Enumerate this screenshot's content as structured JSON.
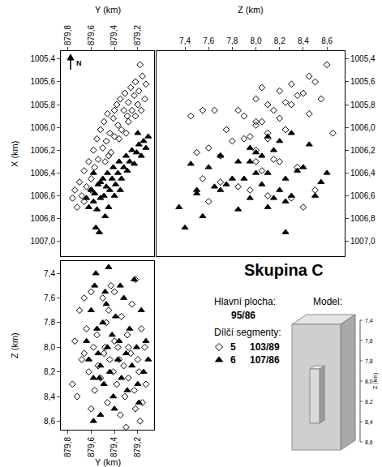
{
  "chart_data": [
    {
      "type": "scatter",
      "x_label": "Y (km)",
      "y_label": "X (km)",
      "xlim": [
        879.86,
        879.06
      ],
      "ylim": [
        1007.13,
        1005.33
      ],
      "xticks": [
        {
          "value": 879.8,
          "label": "879,8"
        },
        {
          "value": 879.6,
          "label": "879,6"
        },
        {
          "value": 879.4,
          "label": "879,4"
        },
        {
          "value": 879.2,
          "label": "879,2"
        }
      ],
      "yticks": [
        {
          "value": 1005.4,
          "label": "1005,4"
        },
        {
          "value": 1005.6,
          "label": "1005,6"
        },
        {
          "value": 1005.8,
          "label": "1005,8"
        },
        {
          "value": 1006.0,
          "label": "1006,0"
        },
        {
          "value": 1006.2,
          "label": "1006,2"
        },
        {
          "value": 1006.4,
          "label": "1006,4"
        },
        {
          "value": 1006.6,
          "label": "1006,6"
        },
        {
          "value": 1006.8,
          "label": "1006,8"
        },
        {
          "value": 1007.0,
          "label": "1007,0"
        }
      ],
      "grid": false,
      "series": [
        {
          "name": "5",
          "marker": "diamond-open",
          "color": "#000000",
          "x": [
            879.76,
            879.74,
            879.72,
            879.7,
            879.68,
            879.66,
            879.64,
            879.62,
            879.6,
            879.58,
            879.57,
            879.55,
            879.54,
            879.52,
            879.5,
            879.49,
            879.47,
            879.46,
            879.44,
            879.43,
            879.41,
            879.4,
            879.38,
            879.37,
            879.35,
            879.34,
            879.32,
            879.31,
            879.29,
            879.28,
            879.26,
            879.25,
            879.23,
            879.22,
            879.2,
            879.19,
            879.17,
            879.16,
            879.14,
            879.18,
            879.22,
            879.3,
            879.45,
            879.6,
            879.66,
            879.28,
            879.36,
            879.48,
            879.13,
            879.4
          ],
          "y": [
            1006.62,
            1006.55,
            1006.7,
            1006.48,
            1006.6,
            1006.38,
            1006.52,
            1006.3,
            1006.45,
            1006.2,
            1006.35,
            1006.1,
            1006.28,
            1006.02,
            1006.18,
            1005.95,
            1006.12,
            1005.88,
            1006.05,
            1006.22,
            1005.92,
            1006.08,
            1005.8,
            1005.98,
            1005.75,
            1006.02,
            1005.85,
            1005.7,
            1005.9,
            1005.78,
            1005.65,
            1005.85,
            1005.72,
            1005.6,
            1005.8,
            1005.68,
            1005.85,
            1005.55,
            1005.75,
            1005.45,
            1005.9,
            1006.05,
            1006.25,
            1006.55,
            1006.65,
            1005.95,
            1006.1,
            1006.3,
            1005.62,
            1005.85
          ]
        },
        {
          "name": "6",
          "marker": "triangle-up",
          "color": "#000000",
          "x": [
            879.64,
            879.62,
            879.6,
            879.58,
            879.57,
            879.55,
            879.54,
            879.52,
            879.5,
            879.49,
            879.47,
            879.46,
            879.44,
            879.42,
            879.41,
            879.39,
            879.37,
            879.36,
            879.34,
            879.32,
            879.3,
            879.29,
            879.27,
            879.25,
            879.23,
            879.21,
            879.19,
            879.17,
            879.15,
            879.13,
            879.11,
            879.56,
            879.53,
            879.48,
            879.58,
            879.4,
            879.45,
            879.2,
            879.52,
            879.35
          ],
          "y": [
            1006.62,
            1006.7,
            1006.55,
            1006.65,
            1006.58,
            1006.72,
            1006.5,
            1006.62,
            1006.45,
            1006.6,
            1006.52,
            1006.4,
            1006.55,
            1006.45,
            1006.35,
            1006.5,
            1006.4,
            1006.3,
            1006.45,
            1006.35,
            1006.25,
            1006.38,
            1006.3,
            1006.2,
            1006.32,
            1006.22,
            1006.15,
            1006.25,
            1006.12,
            1006.18,
            1006.08,
            1006.88,
            1006.92,
            1006.78,
            1006.4,
            1006.6,
            1006.7,
            1006.05,
            1006.48,
            1006.55
          ]
        }
      ]
    },
    {
      "type": "scatter",
      "x_label": "Z (km)",
      "xlim": [
        7.16,
        8.75
      ],
      "ylim": [
        1007.13,
        1005.33
      ],
      "xticks": [
        {
          "value": 7.4,
          "label": "7,4"
        },
        {
          "value": 7.6,
          "label": "7,6"
        },
        {
          "value": 7.8,
          "label": "7,8"
        },
        {
          "value": 8.0,
          "label": "8,0"
        },
        {
          "value": 8.2,
          "label": "8,2"
        },
        {
          "value": 8.4,
          "label": "8,4"
        },
        {
          "value": 8.6,
          "label": "8,6"
        }
      ],
      "yticks": [
        {
          "value": 1005.4,
          "label": "1005,4"
        },
        {
          "value": 1005.6,
          "label": "1005,6"
        },
        {
          "value": 1005.8,
          "label": "1005,8"
        },
        {
          "value": 1006.0,
          "label": "1006,0"
        },
        {
          "value": 1006.2,
          "label": "1006,2"
        },
        {
          "value": 1006.4,
          "label": "1006,4"
        },
        {
          "value": 1006.6,
          "label": "1006,6"
        },
        {
          "value": 1006.8,
          "label": "1006,8"
        },
        {
          "value": 1007.0,
          "label": "1007,0"
        }
      ],
      "grid": false,
      "series": [
        {
          "name": "5",
          "marker": "diamond-open",
          "color": "#000000",
          "x": [
            8.3,
            7.95,
            8.4,
            7.7,
            8.1,
            8.05,
            7.85,
            8.2,
            7.55,
            8.0,
            8.35,
            7.9,
            8.15,
            8.25,
            7.6,
            8.05,
            7.8,
            8.45,
            8.1,
            7.5,
            8.2,
            7.95,
            8.3,
            8.0,
            8.55,
            7.75,
            8.15,
            8.4,
            7.9,
            8.25,
            8.05,
            7.65,
            8.35,
            8.5,
            8.1,
            8.2,
            7.85,
            8.45,
            8.0,
            8.6,
            7.45,
            8.65,
            7.7,
            8.5,
            7.6,
            8.0,
            8.1,
            8.0,
            8.3,
            7.55
          ],
          "y": [
            1006.62,
            1006.55,
            1006.7,
            1006.48,
            1006.6,
            1006.38,
            1006.52,
            1006.3,
            1006.45,
            1006.2,
            1006.35,
            1006.1,
            1006.28,
            1006.02,
            1006.18,
            1005.95,
            1006.12,
            1005.88,
            1006.05,
            1006.22,
            1005.92,
            1006.08,
            1005.8,
            1005.98,
            1005.75,
            1006.02,
            1005.85,
            1005.7,
            1005.9,
            1005.78,
            1005.65,
            1005.85,
            1005.72,
            1005.6,
            1005.8,
            1005.68,
            1005.85,
            1005.55,
            1005.75,
            1005.45,
            1005.9,
            1006.05,
            1006.25,
            1006.55,
            1006.65,
            1005.95,
            1006.1,
            1006.3,
            1005.62,
            1005.85
          ]
        },
        {
          "name": "6",
          "marker": "triangle-up",
          "color": "#000000",
          "x": [
            7.95,
            8.1,
            7.7,
            8.25,
            7.5,
            7.85,
            8.05,
            8.15,
            7.8,
            8.3,
            7.65,
            8.0,
            8.2,
            7.9,
            8.4,
            7.75,
            8.1,
            7.95,
            8.25,
            7.6,
            8.05,
            8.35,
            7.85,
            8.15,
            7.45,
            8.0,
            8.45,
            7.7,
            8.2,
            7.95,
            8.1,
            7.4,
            8.25,
            7.55,
            8.6,
            8.5,
            7.35,
            8.3,
            8.55,
            7.5
          ],
          "y": [
            1006.62,
            1006.7,
            1006.55,
            1006.65,
            1006.58,
            1006.72,
            1006.5,
            1006.62,
            1006.45,
            1006.6,
            1006.52,
            1006.4,
            1006.55,
            1006.45,
            1006.35,
            1006.5,
            1006.4,
            1006.3,
            1006.45,
            1006.35,
            1006.25,
            1006.38,
            1006.3,
            1006.2,
            1006.32,
            1006.22,
            1006.15,
            1006.25,
            1006.12,
            1006.18,
            1006.08,
            1006.88,
            1006.92,
            1006.78,
            1006.4,
            1006.6,
            1006.7,
            1006.05,
            1006.48,
            1006.55
          ]
        }
      ]
    },
    {
      "type": "scatter",
      "x_label": "Y (km)",
      "y_label": "Z (km)",
      "xlim": [
        879.86,
        879.06
      ],
      "ylim": [
        8.67,
        7.3
      ],
      "xticks": [
        {
          "value": 879.8,
          "label": "879,8"
        },
        {
          "value": 879.6,
          "label": "879,6"
        },
        {
          "value": 879.4,
          "label": "879,4"
        },
        {
          "value": 879.2,
          "label": "879,2"
        }
      ],
      "yticks": [
        {
          "value": 7.4,
          "label": "7,4"
        },
        {
          "value": 7.6,
          "label": "7,6"
        },
        {
          "value": 7.8,
          "label": "7,8"
        },
        {
          "value": 8.0,
          "label": "8,0"
        },
        {
          "value": 8.2,
          "label": "8,2"
        },
        {
          "value": 8.4,
          "label": "8,4"
        },
        {
          "value": 8.6,
          "label": "8,6"
        }
      ],
      "grid": false,
      "series": [
        {
          "name": "5",
          "marker": "diamond-open",
          "color": "#000000",
          "x": [
            879.76,
            879.74,
            879.72,
            879.7,
            879.68,
            879.66,
            879.64,
            879.62,
            879.6,
            879.58,
            879.57,
            879.55,
            879.54,
            879.52,
            879.5,
            879.49,
            879.47,
            879.46,
            879.44,
            879.43,
            879.41,
            879.4,
            879.38,
            879.37,
            879.35,
            879.34,
            879.32,
            879.31,
            879.29,
            879.28,
            879.26,
            879.25,
            879.23,
            879.22,
            879.2,
            879.19,
            879.17,
            879.16,
            879.14,
            879.18,
            879.22,
            879.3,
            879.45,
            879.6,
            879.66,
            879.28,
            879.36,
            879.48,
            879.13,
            879.4
          ],
          "y": [
            8.3,
            7.95,
            8.4,
            7.7,
            8.1,
            8.05,
            7.85,
            8.2,
            7.55,
            8.0,
            8.35,
            7.9,
            8.15,
            8.25,
            7.6,
            8.05,
            7.8,
            8.45,
            8.1,
            7.5,
            8.2,
            7.95,
            8.3,
            8.0,
            8.55,
            7.75,
            8.15,
            8.4,
            7.9,
            8.25,
            8.05,
            7.65,
            8.35,
            8.5,
            8.1,
            8.2,
            7.85,
            8.45,
            8.0,
            8.6,
            7.45,
            8.65,
            7.7,
            8.5,
            7.6,
            8.0,
            8.1,
            8.0,
            8.3,
            7.55
          ]
        },
        {
          "name": "6",
          "marker": "triangle-up",
          "color": "#000000",
          "x": [
            879.64,
            879.62,
            879.6,
            879.58,
            879.57,
            879.55,
            879.54,
            879.52,
            879.5,
            879.49,
            879.47,
            879.46,
            879.44,
            879.42,
            879.41,
            879.39,
            879.37,
            879.36,
            879.34,
            879.32,
            879.3,
            879.29,
            879.27,
            879.25,
            879.23,
            879.21,
            879.19,
            879.17,
            879.15,
            879.13,
            879.11,
            879.56,
            879.53,
            879.48,
            879.58,
            879.4,
            879.45,
            879.2,
            879.52,
            879.35
          ],
          "y": [
            7.95,
            8.1,
            7.7,
            8.25,
            7.5,
            7.85,
            8.05,
            8.15,
            7.8,
            8.3,
            7.65,
            8.0,
            8.2,
            7.9,
            8.4,
            7.75,
            8.1,
            7.95,
            8.25,
            7.6,
            8.05,
            8.35,
            7.85,
            8.15,
            7.45,
            8.0,
            8.45,
            7.7,
            8.2,
            7.95,
            8.1,
            7.4,
            8.25,
            7.55,
            8.6,
            8.5,
            7.35,
            8.3,
            8.55,
            7.5
          ]
        }
      ]
    }
  ],
  "figure": {
    "title": "Skupina C",
    "north": "N",
    "main_plane_label": "Hlavní plocha:",
    "main_plane": "95/86",
    "segments_label": "Dílčí segmenty:",
    "segments": [
      {
        "name": "5",
        "marker": "diamond-open",
        "color": "#000000",
        "value": "103/89"
      },
      {
        "name": "6",
        "marker": "triangle-up",
        "color": "#000000",
        "value": "107/86"
      }
    ],
    "model": {
      "title": "Model:",
      "z_label": "Z (km)",
      "z_ticks": [
        {
          "value": 7.4,
          "label": "7,4"
        },
        {
          "value": 7.6,
          "label": "7,6"
        },
        {
          "value": 7.8,
          "label": "7,8"
        },
        {
          "value": 8.0,
          "label": "8,0"
        },
        {
          "value": 8.2,
          "label": "8,2"
        },
        {
          "value": 8.4,
          "label": "8,4"
        },
        {
          "value": 8.6,
          "label": "8,6"
        }
      ]
    }
  }
}
